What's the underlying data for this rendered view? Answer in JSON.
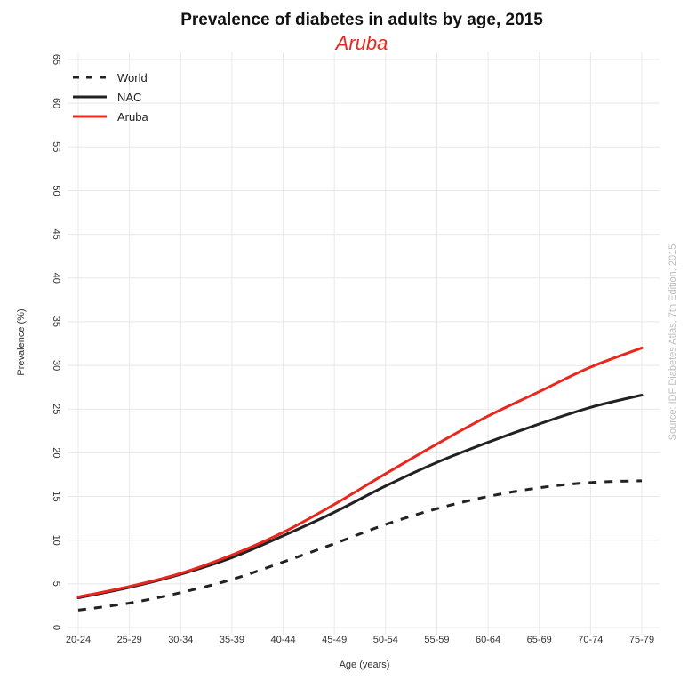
{
  "chart_data": {
    "type": "line",
    "title": "Prevalence of diabetes in adults by age, 2015",
    "subtitle": "Aruba",
    "xlabel": "Age (years)",
    "ylabel": "Prevalence (%)",
    "source": "Source: IDF Diabetes Atlas, 7th Edition, 2015",
    "categories": [
      "20-24",
      "25-29",
      "30-34",
      "35-39",
      "40-44",
      "45-49",
      "50-54",
      "55-59",
      "60-64",
      "65-69",
      "70-74",
      "75-79"
    ],
    "ylim": [
      0,
      65
    ],
    "yticks": [
      "0",
      "5",
      "10",
      "15",
      "20",
      "25",
      "30",
      "35",
      "40",
      "45",
      "50",
      "55",
      "60",
      "65"
    ],
    "grid": true,
    "legend_position": "top-left",
    "series": [
      {
        "name": "World",
        "style": "dashed",
        "color": "#222222",
        "values": [
          2.0,
          2.8,
          4.0,
          5.5,
          7.5,
          9.6,
          11.8,
          13.6,
          15.0,
          16.0,
          16.6,
          16.8
        ]
      },
      {
        "name": "NAC",
        "style": "solid",
        "color": "#222222",
        "values": [
          3.4,
          4.6,
          6.1,
          8.0,
          10.5,
          13.2,
          16.2,
          18.9,
          21.2,
          23.3,
          25.2,
          26.6
        ]
      },
      {
        "name": "Aruba",
        "style": "solid",
        "color": "#e8281e",
        "values": [
          3.5,
          4.7,
          6.2,
          8.3,
          10.9,
          14.1,
          17.6,
          21.0,
          24.2,
          27.0,
          29.8,
          32.0
        ]
      }
    ]
  }
}
